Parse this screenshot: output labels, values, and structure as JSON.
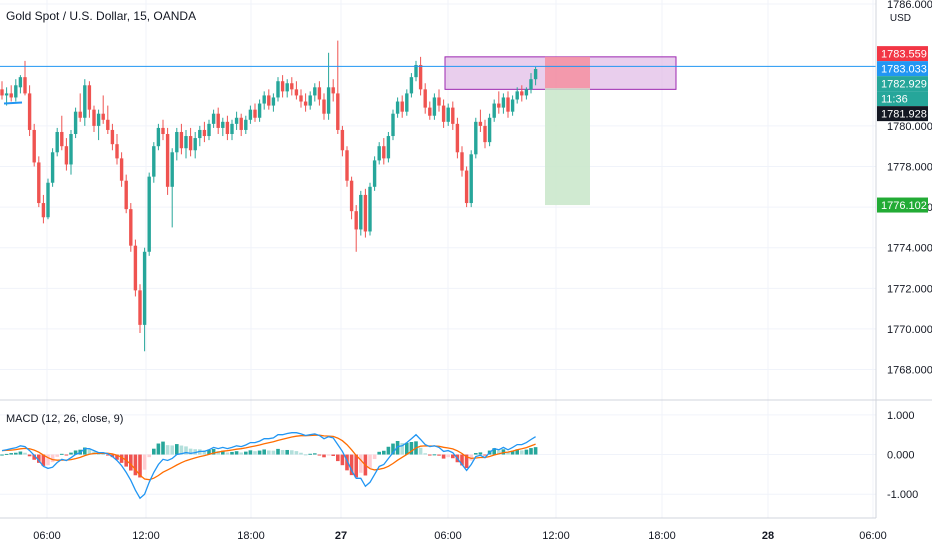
{
  "chart_data": [
    {
      "type": "candlestick",
      "title": "Gold Spot / U.S. Dollar, 15, OANDA",
      "currency": "USD",
      "ylim": [
        1766.5,
        1786.2
      ],
      "y_ticks": [
        "1786.000",
        "1780.000",
        "1778.000",
        "1776.000",
        "1774.000",
        "1772.000",
        "1770.000",
        "1768.000"
      ],
      "x_ticks": [
        "06:00",
        "12:00",
        "18:00",
        "27",
        "06:00",
        "12:00",
        "18:00",
        "28",
        "06:00"
      ],
      "colors": {
        "up": "#26a69a",
        "down": "#ef5350",
        "hline": "#2196f3",
        "box_fill": "#e1bee7",
        "box_border": "#9c27b0",
        "stop": "#f48fa0",
        "target": "#c8e6c9"
      },
      "horizontal_line": 1782.929,
      "price_tags": [
        {
          "label": "1783.559",
          "value": 1783.559,
          "color": "#f23645"
        },
        {
          "label": "1783.033",
          "value": 1783.033,
          "color": "#2196f3"
        },
        {
          "label": "1782.929",
          "value": 1782.929,
          "color": "#26a69a"
        },
        {
          "label": "11:36",
          "value": 1782.3,
          "color": "#26a69a"
        },
        {
          "label": "1781.928",
          "value": 1781.928,
          "color": "#131722"
        },
        {
          "label": "1776.102",
          "value": 1776.102,
          "color": "#22ab35"
        }
      ],
      "zone": {
        "top": 1783.4,
        "bottom": 1781.8
      },
      "position": {
        "entry": 1781.85,
        "stop": 1783.4,
        "target": 1776.1
      },
      "candles": [
        [
          1781.8,
          1782.2,
          1781.3,
          1781.5
        ],
        [
          1781.5,
          1781.9,
          1781.0,
          1781.6
        ],
        [
          1781.6,
          1782.0,
          1781.2,
          1781.4
        ],
        [
          1781.4,
          1782.3,
          1781.2,
          1782.0
        ],
        [
          1781.9,
          1782.5,
          1781.6,
          1782.4
        ],
        [
          1782.4,
          1783.2,
          1781.5,
          1781.6
        ],
        [
          1781.6,
          1782.0,
          1779.5,
          1779.8
        ],
        [
          1779.8,
          1780.1,
          1778.0,
          1778.2
        ],
        [
          1778.2,
          1778.5,
          1776.0,
          1776.2
        ],
        [
          1776.2,
          1776.6,
          1775.2,
          1775.5
        ],
        [
          1775.5,
          1777.4,
          1775.4,
          1777.2
        ],
        [
          1777.2,
          1778.9,
          1777.0,
          1778.7
        ],
        [
          1778.7,
          1779.9,
          1778.5,
          1779.7
        ],
        [
          1779.7,
          1780.5,
          1778.8,
          1779.0
        ],
        [
          1779.0,
          1779.4,
          1777.8,
          1778.1
        ],
        [
          1778.1,
          1779.8,
          1777.6,
          1779.6
        ],
        [
          1779.6,
          1780.9,
          1779.4,
          1780.7
        ],
        [
          1780.7,
          1781.6,
          1780.2,
          1780.4
        ],
        [
          1780.4,
          1782.3,
          1780.0,
          1782.0
        ],
        [
          1782.0,
          1782.2,
          1780.4,
          1780.8
        ],
        [
          1780.8,
          1781.0,
          1779.7,
          1780.0
        ],
        [
          1780.0,
          1780.8,
          1779.3,
          1780.6
        ],
        [
          1780.6,
          1781.5,
          1780.1,
          1780.3
        ],
        [
          1780.3,
          1781.0,
          1779.6,
          1779.8
        ],
        [
          1779.8,
          1780.1,
          1778.8,
          1779.1
        ],
        [
          1779.1,
          1779.6,
          1778.1,
          1778.4
        ],
        [
          1778.4,
          1778.7,
          1777.0,
          1777.3
        ],
        [
          1777.3,
          1777.6,
          1775.7,
          1775.9
        ],
        [
          1775.9,
          1776.2,
          1773.8,
          1774.1
        ],
        [
          1774.1,
          1774.4,
          1771.6,
          1771.9
        ],
        [
          1771.9,
          1772.2,
          1769.8,
          1770.2
        ],
        [
          1770.2,
          1774.0,
          1768.9,
          1773.8
        ],
        [
          1773.8,
          1777.7,
          1773.6,
          1777.5
        ],
        [
          1777.5,
          1779.2,
          1777.2,
          1779.0
        ],
        [
          1779.0,
          1780.1,
          1778.8,
          1779.9
        ],
        [
          1779.9,
          1780.3,
          1779.3,
          1779.6
        ],
        [
          1779.6,
          1779.9,
          1776.6,
          1777.0
        ],
        [
          1777.0,
          1778.9,
          1775.0,
          1778.7
        ],
        [
          1778.7,
          1779.9,
          1778.3,
          1779.7
        ],
        [
          1779.7,
          1780.1,
          1778.6,
          1778.9
        ],
        [
          1778.9,
          1779.8,
          1778.4,
          1779.5
        ],
        [
          1779.5,
          1779.9,
          1778.5,
          1778.8
        ],
        [
          1778.8,
          1779.7,
          1778.4,
          1779.4
        ],
        [
          1779.4,
          1780.0,
          1779.0,
          1779.8
        ],
        [
          1779.8,
          1780.2,
          1779.2,
          1779.5
        ],
        [
          1779.5,
          1780.3,
          1779.3,
          1780.1
        ],
        [
          1780.1,
          1780.8,
          1779.9,
          1780.6
        ],
        [
          1780.6,
          1780.9,
          1779.6,
          1779.9
        ],
        [
          1779.9,
          1780.4,
          1779.5,
          1780.2
        ],
        [
          1780.2,
          1780.5,
          1779.3,
          1779.6
        ],
        [
          1779.6,
          1780.3,
          1779.3,
          1780.1
        ],
        [
          1780.1,
          1780.7,
          1779.8,
          1780.4
        ],
        [
          1780.4,
          1780.6,
          1779.5,
          1779.8
        ],
        [
          1779.8,
          1780.5,
          1779.6,
          1780.3
        ],
        [
          1780.3,
          1781.0,
          1780.1,
          1780.8
        ],
        [
          1780.8,
          1781.1,
          1780.2,
          1780.4
        ],
        [
          1780.4,
          1781.3,
          1780.2,
          1781.1
        ],
        [
          1781.1,
          1781.7,
          1780.8,
          1781.5
        ],
        [
          1781.5,
          1781.8,
          1780.8,
          1781.0
        ],
        [
          1781.0,
          1781.6,
          1780.7,
          1781.4
        ],
        [
          1781.4,
          1782.4,
          1781.2,
          1782.2
        ],
        [
          1782.2,
          1782.5,
          1781.4,
          1781.7
        ],
        [
          1781.7,
          1782.3,
          1781.4,
          1782.1
        ],
        [
          1782.1,
          1782.4,
          1781.5,
          1781.8
        ],
        [
          1781.8,
          1782.2,
          1781.3,
          1781.5
        ],
        [
          1781.5,
          1781.8,
          1780.9,
          1781.2
        ],
        [
          1781.2,
          1781.6,
          1780.7,
          1781.0
        ],
        [
          1781.0,
          1781.7,
          1780.8,
          1781.5
        ],
        [
          1781.5,
          1782.1,
          1781.2,
          1781.9
        ],
        [
          1781.9,
          1782.2,
          1781.0,
          1781.3
        ],
        [
          1781.3,
          1781.6,
          1780.3,
          1780.6
        ],
        [
          1780.6,
          1783.6,
          1780.3,
          1781.9
        ],
        [
          1781.9,
          1782.3,
          1781.2,
          1781.6
        ],
        [
          1781.6,
          1784.2,
          1779.6,
          1779.8
        ],
        [
          1779.8,
          1780.0,
          1778.5,
          1778.8
        ],
        [
          1778.8,
          1779.0,
          1777.0,
          1777.3
        ],
        [
          1777.3,
          1777.5,
          1775.4,
          1775.8
        ],
        [
          1775.8,
          1776.1,
          1773.8,
          1774.9
        ],
        [
          1774.9,
          1776.8,
          1774.6,
          1776.6
        ],
        [
          1776.6,
          1776.9,
          1774.5,
          1774.8
        ],
        [
          1774.8,
          1777.2,
          1774.6,
          1777.0
        ],
        [
          1777.0,
          1778.5,
          1776.8,
          1778.3
        ],
        [
          1778.3,
          1779.2,
          1778.1,
          1779.0
        ],
        [
          1779.0,
          1779.4,
          1778.1,
          1778.4
        ],
        [
          1778.4,
          1779.7,
          1778.2,
          1779.5
        ],
        [
          1779.5,
          1780.8,
          1779.3,
          1780.6
        ],
        [
          1780.6,
          1781.4,
          1780.4,
          1781.2
        ],
        [
          1781.2,
          1781.5,
          1780.4,
          1780.7
        ],
        [
          1780.7,
          1781.8,
          1780.5,
          1781.6
        ],
        [
          1781.6,
          1782.6,
          1781.4,
          1782.4
        ],
        [
          1782.4,
          1783.2,
          1782.2,
          1783.0
        ],
        [
          1783.0,
          1783.4,
          1781.5,
          1781.8
        ],
        [
          1781.8,
          1782.1,
          1780.6,
          1780.9
        ],
        [
          1780.9,
          1781.2,
          1780.3,
          1780.5
        ],
        [
          1780.5,
          1781.6,
          1780.3,
          1781.4
        ],
        [
          1781.4,
          1781.8,
          1780.7,
          1781.0
        ],
        [
          1781.0,
          1781.3,
          1779.9,
          1780.2
        ],
        [
          1780.2,
          1781.1,
          1780.0,
          1780.9
        ],
        [
          1780.9,
          1781.2,
          1779.8,
          1780.1
        ],
        [
          1780.1,
          1780.4,
          1778.4,
          1778.7
        ],
        [
          1778.7,
          1779.0,
          1777.5,
          1777.8
        ],
        [
          1777.8,
          1778.0,
          1776.0,
          1776.2
        ],
        [
          1776.2,
          1778.8,
          1776.0,
          1778.6
        ],
        [
          1778.6,
          1780.4,
          1778.4,
          1780.2
        ],
        [
          1780.2,
          1780.8,
          1779.7,
          1780.0
        ],
        [
          1780.0,
          1780.3,
          1778.9,
          1779.2
        ],
        [
          1779.2,
          1780.6,
          1779.0,
          1780.4
        ],
        [
          1780.4,
          1781.3,
          1780.2,
          1781.1
        ],
        [
          1781.1,
          1781.7,
          1780.6,
          1780.9
        ],
        [
          1780.9,
          1781.6,
          1780.6,
          1781.4
        ],
        [
          1781.4,
          1781.7,
          1780.4,
          1780.7
        ],
        [
          1780.7,
          1781.5,
          1780.5,
          1781.3
        ],
        [
          1781.3,
          1781.9,
          1781.1,
          1781.7
        ],
        [
          1781.7,
          1782.0,
          1781.2,
          1781.5
        ],
        [
          1781.5,
          1781.9,
          1781.3,
          1781.8
        ],
        [
          1781.8,
          1782.6,
          1781.6,
          1782.3
        ],
        [
          1782.3,
          1782.9,
          1782.0,
          1782.8
        ]
      ]
    },
    {
      "type": "macd",
      "title": "MACD (12, 26, close, 9)",
      "ylim": [
        -1.6,
        1.35
      ],
      "y_ticks": [
        "1.000",
        "0.000",
        "-1.000"
      ],
      "colors": {
        "macd": "#2196f3",
        "signal": "#ff6d00",
        "hist_up_strong": "#26a69a",
        "hist_up_weak": "#b2dfdb",
        "hist_down_strong": "#ef5350",
        "hist_down_weak": "#ffcdd2"
      },
      "macd": [
        0.1,
        0.12,
        0.15,
        0.17,
        0.22,
        0.2,
        0.1,
        -0.02,
        -0.15,
        -0.3,
        -0.35,
        -0.32,
        -0.2,
        -0.12,
        -0.15,
        -0.08,
        0.0,
        0.05,
        0.15,
        0.15,
        0.1,
        0.05,
        0.05,
        0.02,
        -0.05,
        -0.15,
        -0.28,
        -0.45,
        -0.65,
        -0.9,
        -1.1,
        -1.0,
        -0.7,
        -0.45,
        -0.25,
        -0.12,
        -0.15,
        -0.1,
        0.0,
        0.02,
        0.05,
        0.03,
        0.05,
        0.08,
        0.08,
        0.12,
        0.18,
        0.15,
        0.18,
        0.15,
        0.18,
        0.22,
        0.2,
        0.24,
        0.3,
        0.3,
        0.34,
        0.4,
        0.4,
        0.42,
        0.5,
        0.5,
        0.53,
        0.55,
        0.55,
        0.52,
        0.48,
        0.5,
        0.52,
        0.48,
        0.4,
        0.45,
        0.42,
        0.25,
        0.08,
        -0.15,
        -0.4,
        -0.6,
        -0.6,
        -0.8,
        -0.7,
        -0.5,
        -0.3,
        -0.25,
        -0.1,
        0.05,
        0.2,
        0.22,
        0.3,
        0.4,
        0.5,
        0.38,
        0.25,
        0.2,
        0.22,
        0.18,
        0.08,
        0.1,
        0.05,
        -0.1,
        -0.25,
        -0.4,
        -0.25,
        -0.05,
        -0.02,
        -0.08,
        0.05,
        0.15,
        0.12,
        0.18,
        0.12,
        0.18,
        0.25,
        0.25,
        0.3,
        0.38,
        0.45
      ]
    }
  ]
}
